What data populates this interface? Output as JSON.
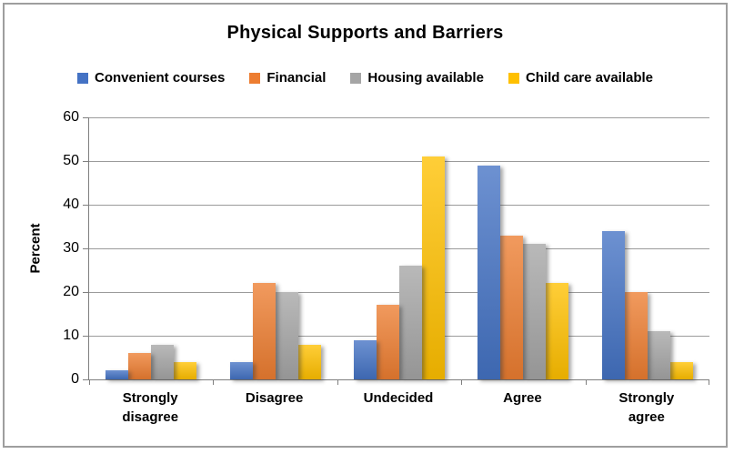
{
  "title": "Physical Supports and Barriers",
  "chart_data": {
    "type": "bar",
    "title": "Physical Supports and Barriers",
    "categories": [
      "Strongly disagree",
      "Disagree",
      "Undecided",
      "Agree",
      "Strongly agree"
    ],
    "series": [
      {
        "name": "Convenient courses",
        "color": "#4472C4",
        "values": [
          2,
          4,
          9,
          49,
          34
        ]
      },
      {
        "name": "Financial",
        "color": "#ED7D31",
        "values": [
          6,
          22,
          17,
          33,
          20
        ]
      },
      {
        "name": "Housing available",
        "color": "#A5A5A5",
        "values": [
          8,
          20,
          26,
          31,
          11
        ]
      },
      {
        "name": "Child care available",
        "color": "#FFC000",
        "values": [
          4,
          8,
          51,
          22,
          4
        ]
      }
    ],
    "xlabel": "",
    "ylabel": "Percent",
    "ylim": [
      0,
      60
    ],
    "yticks": [
      0,
      10,
      20,
      30,
      40,
      50,
      60
    ],
    "grid": true,
    "legend_position": "top",
    "bar_style": "gradient-with-shadow",
    "colors": {
      "gridline": "#9B9B9B",
      "axis": "#7F7F7F",
      "text": "#000000",
      "frame_border": "#9E9E9E",
      "background": "#FFFFFF"
    }
  }
}
